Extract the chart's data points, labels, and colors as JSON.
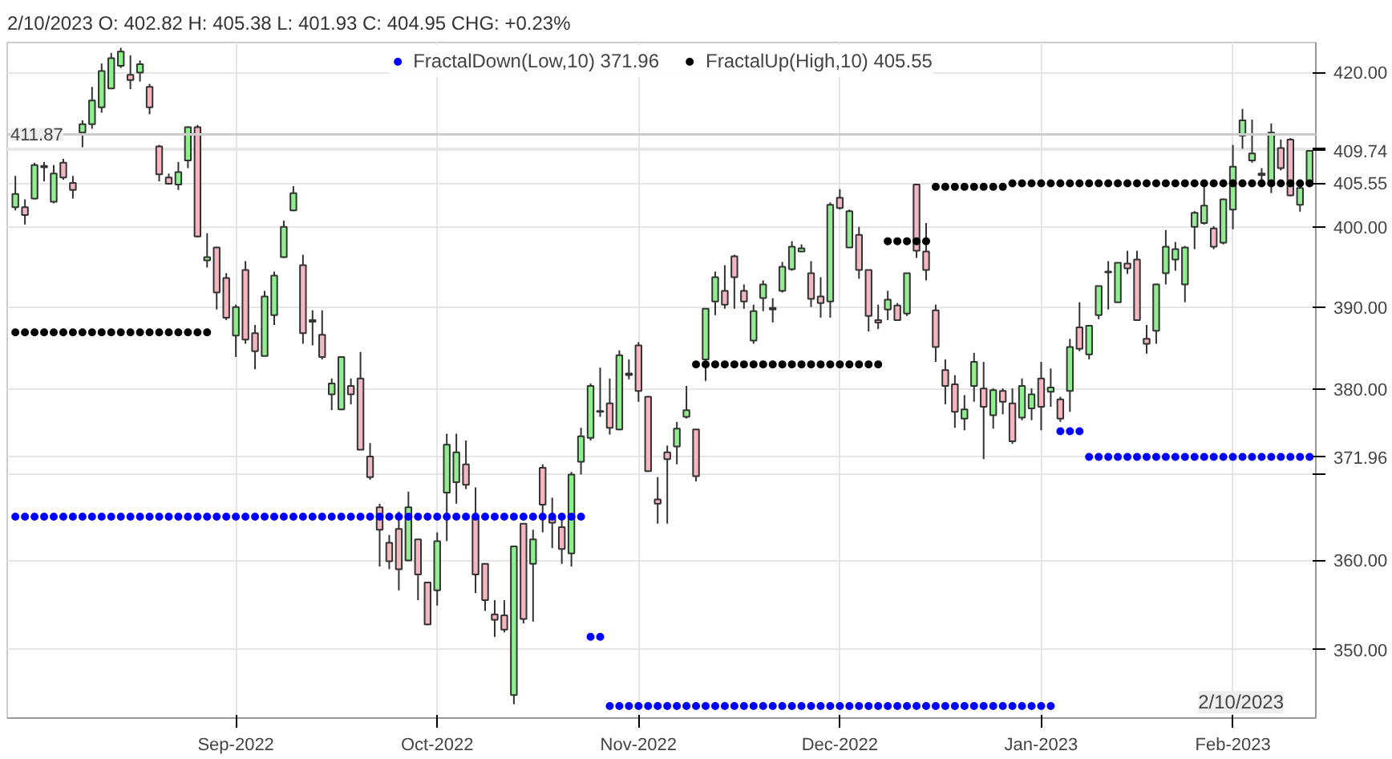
{
  "chart_data": {
    "type": "candlestick",
    "title": "2/10/2023 O: 402.82 H: 405.38 L: 401.93 C: 404.95 CHG: +0.23%",
    "categories": [
      null,
      null,
      null,
      null,
      null,
      null,
      null,
      null,
      null,
      null,
      null,
      null,
      null,
      null,
      null,
      null,
      null,
      null,
      null,
      null,
      null,
      null,
      null,
      "Sep-2022",
      null,
      null,
      null,
      null,
      null,
      null,
      null,
      null,
      null,
      null,
      null,
      null,
      null,
      null,
      null,
      null,
      null,
      null,
      null,
      null,
      "Oct-2022",
      null,
      null,
      null,
      null,
      null,
      null,
      null,
      null,
      null,
      null,
      null,
      null,
      null,
      null,
      null,
      null,
      null,
      null,
      null,
      null,
      "Nov-2022",
      null,
      null,
      null,
      null,
      null,
      null,
      null,
      null,
      null,
      null,
      null,
      null,
      null,
      null,
      null,
      null,
      null,
      null,
      null,
      null,
      "Dec-2022",
      null,
      null,
      null,
      null,
      null,
      null,
      null,
      null,
      null,
      null,
      null,
      null,
      null,
      null,
      null,
      null,
      null,
      null,
      null,
      null,
      "Jan-2023",
      null,
      null,
      null,
      null,
      null,
      null,
      null,
      null,
      null,
      null,
      null,
      null,
      null,
      null,
      null,
      null,
      null,
      null,
      null,
      "Feb-2023",
      null,
      null,
      null,
      null,
      null,
      null,
      null,
      null
    ],
    "ohlc": [
      [
        402.5,
        406.5,
        402.1,
        404.2
      ],
      [
        402.5,
        403.5,
        400.3,
        401.5
      ],
      [
        403.6,
        408.2,
        403.5,
        407.9
      ],
      [
        407.6,
        408.3,
        405.8,
        407.8
      ],
      [
        403.2,
        407.9,
        403.0,
        406.8
      ],
      [
        408.2,
        408.7,
        406.0,
        406.3
      ],
      [
        405.6,
        406.5,
        403.6,
        404.7
      ],
      [
        412.1,
        413.7,
        410.2,
        413.2
      ],
      [
        413.2,
        418.1,
        412.6,
        416.3
      ],
      [
        415.4,
        421.2,
        414.7,
        420.2
      ],
      [
        417.9,
        422.6,
        417.8,
        421.9
      ],
      [
        420.9,
        423.3,
        420.6,
        422.8
      ],
      [
        419.7,
        422.3,
        417.8,
        419.0
      ],
      [
        420.0,
        421.6,
        418.8,
        421.1
      ],
      [
        418.1,
        418.5,
        414.5,
        415.4
      ],
      [
        410.3,
        410.5,
        405.8,
        406.7
      ],
      [
        406.3,
        406.8,
        405.4,
        405.5
      ],
      [
        405.4,
        408.3,
        404.7,
        407.0
      ],
      [
        408.5,
        412.9,
        407.5,
        412.8
      ],
      [
        412.8,
        413.1,
        398.7,
        398.8
      ],
      [
        395.8,
        399.2,
        394.9,
        396.2
      ],
      [
        397.4,
        397.5,
        389.7,
        391.8
      ],
      [
        393.6,
        394.2,
        388.4,
        388.7
      ],
      [
        386.5,
        390.3,
        383.9,
        390.0
      ],
      [
        394.6,
        395.7,
        385.5,
        386.0
      ],
      [
        386.8,
        387.8,
        382.4,
        384.6
      ],
      [
        384.0,
        392.0,
        384.0,
        391.3
      ],
      [
        389.0,
        394.4,
        387.8,
        393.9
      ],
      [
        396.2,
        400.8,
        396.1,
        400.0
      ],
      [
        402.1,
        405.2,
        402.0,
        404.3
      ],
      [
        395.2,
        396.5,
        385.5,
        386.8
      ],
      [
        388.4,
        389.6,
        385.3,
        388.2
      ],
      [
        386.6,
        389.6,
        383.6,
        383.9
      ],
      [
        379.4,
        381.3,
        377.5,
        380.7
      ],
      [
        377.6,
        383.9,
        377.5,
        383.9
      ],
      [
        380.4,
        381.3,
        378.2,
        379.4
      ],
      [
        381.3,
        384.5,
        372.8,
        372.8
      ],
      [
        372.0,
        373.6,
        369.3,
        369.6
      ],
      [
        366.1,
        366.5,
        359.3,
        363.5
      ],
      [
        362.0,
        362.9,
        359.0,
        359.9
      ],
      [
        363.6,
        365.6,
        356.6,
        359.0
      ],
      [
        360.0,
        367.9,
        359.9,
        366.1
      ],
      [
        362.4,
        362.4,
        355.5,
        358.4
      ],
      [
        357.5,
        357.5,
        352.7,
        352.8
      ],
      [
        356.6,
        363.2,
        354.9,
        362.2
      ],
      [
        367.8,
        374.7,
        362.2,
        373.4
      ],
      [
        369.0,
        374.7,
        366.5,
        372.5
      ],
      [
        371.1,
        373.9,
        368.2,
        368.7
      ],
      [
        364.8,
        368.4,
        356.3,
        358.4
      ],
      [
        359.6,
        359.6,
        354.3,
        355.5
      ],
      [
        353.9,
        355.5,
        351.4,
        353.3
      ],
      [
        353.8,
        355.5,
        351.9,
        352.2
      ],
      [
        345.0,
        361.6,
        344.0,
        361.6
      ],
      [
        364.2,
        364.2,
        352.9,
        353.4
      ],
      [
        359.6,
        363.5,
        353.1,
        362.4
      ],
      [
        370.7,
        371.1,
        363.2,
        366.4
      ],
      [
        364.8,
        367.2,
        361.4,
        364.3
      ],
      [
        363.8,
        364.6,
        359.6,
        361.3
      ],
      [
        360.8,
        370.2,
        359.3,
        369.9
      ],
      [
        371.4,
        375.4,
        369.9,
        374.4
      ],
      [
        374.2,
        380.7,
        373.9,
        380.4
      ],
      [
        377.3,
        382.6,
        376.7,
        377.4
      ],
      [
        378.3,
        381.3,
        374.6,
        375.4
      ],
      [
        375.2,
        384.7,
        375.1,
        384.1
      ],
      [
        381.7,
        383.6,
        381.2,
        381.9
      ],
      [
        385.3,
        385.7,
        378.5,
        379.8
      ],
      [
        379.1,
        379.1,
        370.3,
        370.3
      ],
      [
        367.0,
        369.6,
        364.2,
        366.5
      ],
      [
        372.5,
        373.3,
        364.2,
        371.7
      ],
      [
        373.2,
        376.1,
        371.1,
        375.3
      ],
      [
        376.7,
        380.4,
        376.5,
        377.5
      ],
      [
        375.2,
        375.2,
        369.1,
        369.7
      ],
      [
        383.6,
        389.8,
        381.0,
        389.8
      ],
      [
        390.7,
        394.4,
        389.0,
        393.7
      ],
      [
        392.0,
        395.2,
        389.8,
        390.3
      ],
      [
        396.3,
        396.5,
        389.8,
        393.7
      ],
      [
        392.0,
        392.8,
        389.8,
        390.7
      ],
      [
        385.9,
        390.3,
        385.5,
        389.5
      ],
      [
        391.1,
        393.3,
        389.5,
        392.8
      ],
      [
        389.9,
        391.1,
        388.1,
        389.7
      ],
      [
        392.0,
        395.6,
        391.8,
        395.0
      ],
      [
        394.7,
        398.2,
        394.5,
        397.5
      ],
      [
        396.9,
        397.8,
        396.9,
        397.3
      ],
      [
        394.2,
        395.7,
        390.0,
        391.0
      ],
      [
        391.3,
        393.7,
        388.7,
        390.5
      ],
      [
        390.7,
        403.1,
        388.7,
        402.8
      ],
      [
        403.7,
        404.8,
        402.2,
        402.4
      ],
      [
        397.4,
        402.2,
        397.4,
        402.0
      ],
      [
        399.0,
        400.0,
        393.5,
        394.6
      ],
      [
        394.6,
        394.6,
        387.0,
        388.9
      ],
      [
        388.4,
        390.3,
        387.3,
        388.1
      ],
      [
        389.7,
        392.0,
        388.4,
        390.9
      ],
      [
        390.2,
        390.5,
        388.4,
        388.4
      ],
      [
        389.2,
        394.2,
        388.9,
        394.2
      ],
      [
        405.4,
        405.5,
        396.1,
        397.0
      ],
      [
        396.9,
        400.5,
        393.3,
        394.6
      ],
      [
        389.6,
        390.3,
        383.3,
        385.1
      ],
      [
        382.3,
        383.6,
        378.2,
        380.4
      ],
      [
        380.6,
        381.7,
        375.4,
        377.3
      ],
      [
        376.5,
        379.3,
        375.1,
        377.6
      ],
      [
        380.4,
        384.4,
        378.5,
        383.3
      ],
      [
        380.1,
        383.3,
        371.7,
        377.9
      ],
      [
        376.9,
        380.1,
        375.3,
        379.9
      ],
      [
        379.8,
        380.1,
        377.0,
        378.5
      ],
      [
        378.3,
        380.1,
        373.5,
        373.8
      ],
      [
        376.6,
        381.3,
        376.3,
        380.4
      ],
      [
        377.7,
        380.1,
        376.3,
        379.4
      ],
      [
        381.3,
        383.3,
        375.1,
        377.9
      ],
      [
        379.7,
        382.5,
        377.9,
        380.2
      ],
      [
        378.8,
        379.1,
        376.1,
        376.5
      ],
      [
        379.8,
        386.1,
        377.3,
        385.1
      ],
      [
        387.5,
        390.6,
        384.6,
        384.9
      ],
      [
        384.2,
        387.7,
        383.6,
        387.7
      ],
      [
        389.0,
        392.6,
        388.5,
        392.6
      ],
      [
        394.3,
        395.7,
        389.7,
        394.4
      ],
      [
        390.6,
        395.5,
        390.6,
        395.5
      ],
      [
        395.4,
        397.0,
        394.1,
        394.8
      ],
      [
        395.9,
        397.0,
        388.3,
        388.4
      ],
      [
        386.1,
        387.8,
        384.3,
        385.5
      ],
      [
        387.1,
        392.9,
        385.5,
        392.8
      ],
      [
        394.2,
        399.6,
        392.8,
        397.5
      ],
      [
        395.9,
        398.1,
        394.5,
        397.2
      ],
      [
        392.8,
        397.6,
        390.6,
        397.4
      ],
      [
        400.0,
        402.0,
        397.2,
        401.8
      ],
      [
        400.5,
        405.5,
        400.3,
        402.7
      ],
      [
        399.8,
        400.1,
        397.2,
        397.5
      ],
      [
        398.0,
        403.6,
        397.8,
        403.5
      ],
      [
        402.2,
        410.5,
        399.7,
        407.7
      ],
      [
        411.7,
        415.2,
        410.0,
        413.7
      ],
      [
        408.5,
        413.8,
        408.2,
        409.4
      ],
      [
        406.8,
        407.5,
        405.8,
        406.6
      ],
      [
        405.3,
        413.3,
        404.3,
        412.1
      ],
      [
        410.1,
        411.2,
        407.2,
        407.5
      ],
      [
        411.2,
        411.4,
        403.9,
        404.0
      ],
      [
        402.82,
        405.38,
        401.93,
        404.95
      ],
      [
        405.6,
        409.8,
        405.5,
        409.74
      ]
    ],
    "colors": [
      "#90ee90",
      "#f4b6c1",
      "#90ee90",
      "#90ee90",
      "#90ee90",
      "#f4b6c1",
      "#f4b6c1",
      "#90ee90",
      "#90ee90",
      "#90ee90",
      "#90ee90",
      "#90ee90",
      "#f4b6c1",
      "#90ee90",
      "#f4b6c1",
      "#f4b6c1",
      "#f4b6c1",
      "#90ee90",
      "#90ee90",
      "#f4b6c1",
      "#90ee90",
      "#f4b6c1",
      "#f4b6c1",
      "#90ee90",
      "#f4b6c1",
      "#f4b6c1",
      "#90ee90",
      "#90ee90",
      "#90ee90",
      "#90ee90",
      "#f4b6c1",
      "#f4b6c1",
      "#f4b6c1",
      "#90ee90",
      "#90ee90",
      "#f4b6c1",
      "#f4b6c1",
      "#f4b6c1",
      "#f4b6c1",
      "#f4b6c1",
      "#f4b6c1",
      "#90ee90",
      "#f4b6c1",
      "#f4b6c1",
      "#90ee90",
      "#90ee90",
      "#90ee90",
      "#f4b6c1",
      "#f4b6c1",
      "#f4b6c1",
      "#f4b6c1",
      "#f4b6c1",
      "#90ee90",
      "#f4b6c1",
      "#90ee90",
      "#f4b6c1",
      "#f4b6c1",
      "#f4b6c1",
      "#90ee90",
      "#90ee90",
      "#90ee90",
      "#90ee90",
      "#f4b6c1",
      "#90ee90",
      "#90ee90",
      "#f4b6c1",
      "#f4b6c1",
      "#f4b6c1",
      "#f4b6c1",
      "#90ee90",
      "#90ee90",
      "#f4b6c1",
      "#90ee90",
      "#90ee90",
      "#f4b6c1",
      "#f4b6c1",
      "#f4b6c1",
      "#90ee90",
      "#90ee90",
      "#f4b6c1",
      "#90ee90",
      "#90ee90",
      "#90ee90",
      "#f4b6c1",
      "#f4b6c1",
      "#90ee90",
      "#f4b6c1",
      "#90ee90",
      "#f4b6c1",
      "#f4b6c1",
      "#f4b6c1",
      "#90ee90",
      "#f4b6c1",
      "#90ee90",
      "#f4b6c1",
      "#f4b6c1",
      "#f4b6c1",
      "#f4b6c1",
      "#f4b6c1",
      "#90ee90",
      "#90ee90",
      "#f4b6c1",
      "#90ee90",
      "#f4b6c1",
      "#f4b6c1",
      "#90ee90",
      "#90ee90",
      "#f4b6c1",
      "#90ee90",
      "#f4b6c1",
      "#90ee90",
      "#f4b6c1",
      "#90ee90",
      "#90ee90",
      "#90ee90",
      "#90ee90",
      "#f4b6c1",
      "#f4b6c1",
      "#f4b6c1",
      "#90ee90",
      "#90ee90",
      "#90ee90",
      "#90ee90",
      "#90ee90",
      "#90ee90",
      "#f4b6c1",
      "#90ee90",
      "#90ee90",
      "#90ee90",
      "#90ee90",
      "#f4b6c1",
      "#90ee90",
      "#f4b6c1",
      "#f4b6c1",
      "#90ee90",
      "#90ee90"
    ],
    "series": [
      {
        "type": "scatter",
        "name": "FractalDown(Low,10) 371.96",
        "color": "#0000ff",
        "values": [
          365.0,
          365.0,
          365.0,
          365.0,
          365.0,
          365.0,
          365.0,
          365.0,
          365.0,
          365.0,
          365.0,
          365.0,
          365.0,
          365.0,
          365.0,
          365.0,
          365.0,
          365.0,
          365.0,
          365.0,
          365.0,
          365.0,
          365.0,
          365.0,
          365.0,
          365.0,
          365.0,
          365.0,
          365.0,
          365.0,
          365.0,
          365.0,
          365.0,
          365.0,
          365.0,
          365.0,
          365.0,
          365.0,
          365.0,
          365.0,
          365.0,
          365.0,
          365.0,
          365.0,
          365.0,
          365.0,
          365.0,
          365.0,
          365.0,
          365.0,
          365.0,
          365.0,
          365.0,
          365.0,
          365.0,
          365.0,
          365.0,
          365.0,
          365.0,
          365.0,
          351.4,
          351.4,
          343.8,
          343.8,
          343.8,
          343.8,
          343.8,
          343.8,
          343.8,
          343.8,
          343.8,
          343.8,
          343.8,
          343.8,
          343.8,
          343.8,
          343.8,
          343.8,
          343.8,
          343.8,
          343.8,
          343.8,
          343.8,
          343.8,
          343.8,
          343.8,
          343.8,
          343.8,
          343.8,
          343.8,
          343.8,
          343.8,
          343.8,
          343.8,
          343.8,
          343.8,
          343.8,
          343.8,
          343.8,
          343.8,
          343.8,
          343.8,
          343.8,
          343.8,
          343.8,
          343.8,
          343.8,
          343.8,
          343.8,
          375.0,
          375.0,
          375.0,
          371.96,
          371.96,
          371.96,
          371.96,
          371.96,
          371.96,
          371.96,
          371.96,
          371.96,
          371.96,
          371.96,
          371.96,
          371.96,
          371.96,
          371.96,
          371.96,
          371.96,
          371.96,
          371.96,
          371.96,
          371.96,
          371.96,
          371.96,
          371.96
        ]
      },
      {
        "type": "scatter",
        "name": "FractalUp(High,10) 405.55",
        "color": "#000000",
        "values": [
          386.9,
          386.9,
          386.9,
          386.9,
          386.9,
          386.9,
          386.9,
          386.9,
          386.9,
          386.9,
          386.9,
          386.9,
          386.9,
          386.9,
          386.9,
          386.9,
          386.9,
          386.9,
          386.9,
          386.9,
          386.9,
          null,
          null,
          null,
          null,
          null,
          null,
          null,
          null,
          null,
          null,
          null,
          null,
          null,
          null,
          null,
          null,
          null,
          null,
          null,
          null,
          null,
          null,
          null,
          null,
          null,
          null,
          null,
          null,
          null,
          null,
          null,
          null,
          null,
          null,
          null,
          null,
          null,
          null,
          null,
          null,
          null,
          null,
          null,
          null,
          null,
          null,
          null,
          null,
          null,
          null,
          383.0,
          383.0,
          383.0,
          383.0,
          383.0,
          383.0,
          383.0,
          383.0,
          383.0,
          383.0,
          383.0,
          383.0,
          383.0,
          383.0,
          383.0,
          383.0,
          383.0,
          383.0,
          383.0,
          383.0,
          398.2,
          398.2,
          398.2,
          398.2,
          398.2,
          405.1,
          405.1,
          405.1,
          405.1,
          405.1,
          405.1,
          405.1,
          405.1,
          405.55,
          405.55,
          405.55,
          405.55,
          405.55,
          405.55,
          405.55,
          405.55,
          405.55,
          405.55,
          405.55,
          405.55,
          405.55,
          405.55,
          405.55,
          405.55,
          405.55,
          405.55,
          405.55,
          405.55,
          405.55,
          405.55,
          405.55,
          405.55,
          405.55,
          405.55,
          405.55,
          405.55,
          405.55,
          405.55,
          405.55,
          405.55
        ]
      }
    ],
    "marker": "circle",
    "log": true,
    "ylim": [
      342.5,
      424
    ],
    "yticks": [
      {
        "value": 350,
        "label": "350.00"
      },
      {
        "value": 360,
        "label": "360.00"
      },
      {
        "value": 370,
        "label": null
      },
      {
        "value": 380,
        "label": "380.00"
      },
      {
        "value": 390,
        "label": "390.00"
      },
      {
        "value": 371.96,
        "label": "371.96"
      },
      {
        "value": 400,
        "label": "400.00"
      },
      {
        "value": 405.55,
        "label": "405.55"
      },
      {
        "value": 409.74,
        "label": "409.74"
      },
      {
        "value": 410,
        "label": null
      },
      {
        "value": 420,
        "label": "420.00"
      }
    ],
    "grid": true,
    "legend": "top",
    "ref_lines": [
      {
        "axis": "y",
        "value": 411.87,
        "label": "411.87",
        "color": "#cccccc"
      }
    ],
    "annotations": [
      "2/10/2023"
    ]
  }
}
